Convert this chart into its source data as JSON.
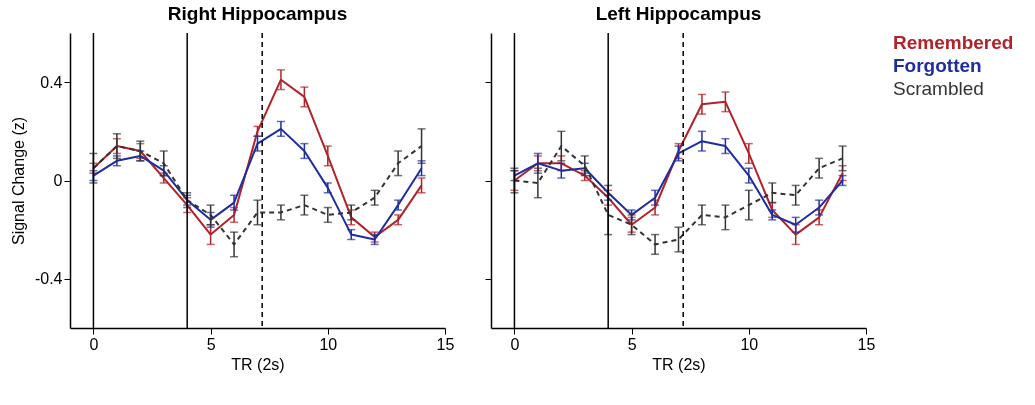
{
  "chart_data": [
    {
      "type": "line",
      "title": "Right Hippocampus",
      "xlabel": "TR (2s)",
      "ylabel": "Signal Change (z)",
      "x": [
        0,
        1,
        2,
        3,
        4,
        5,
        6,
        7,
        8,
        9,
        10,
        11,
        12,
        13,
        14
      ],
      "xlim": [
        -1,
        15
      ],
      "ylim": [
        -0.6,
        0.6
      ],
      "xticks": [
        0,
        5,
        10,
        15
      ],
      "yticks": [
        -0.4,
        0,
        0.4
      ],
      "grid": false,
      "ref_lines": [
        {
          "axis": "x",
          "value": 0,
          "line_style": "solid"
        },
        {
          "axis": "x",
          "value": 4,
          "line_style": "solid"
        },
        {
          "axis": "x",
          "value": 7.2,
          "line_style": "dashed"
        }
      ],
      "series": [
        {
          "color": "#b0232a",
          "line_style": "solid",
          "values": [
            0.05,
            0.14,
            0.12,
            0.01,
            -0.1,
            -0.22,
            -0.14,
            0.2,
            0.41,
            0.34,
            0.1,
            -0.15,
            -0.23,
            -0.16,
            -0.02
          ],
          "errors": [
            0.02,
            0.03,
            0.03,
            0.02,
            0.03,
            0.04,
            0.03,
            0.02,
            0.04,
            0.04,
            0.04,
            0.03,
            0.02,
            0.02,
            0.03
          ]
        },
        {
          "color": "#1f2d9e",
          "line_style": "solid",
          "values": [
            0.02,
            0.08,
            0.1,
            0.04,
            -0.08,
            -0.16,
            -0.09,
            0.15,
            0.21,
            0.12,
            -0.03,
            -0.22,
            -0.24,
            -0.1,
            0.05
          ],
          "errors": [
            0.02,
            0.02,
            0.02,
            0.02,
            0.02,
            0.03,
            0.03,
            0.03,
            0.03,
            0.03,
            0.02,
            0.02,
            0.02,
            0.02,
            0.03
          ]
        },
        {
          "color": "#333333",
          "line_style": "dashed",
          "values": [
            0.05,
            0.14,
            0.12,
            0.07,
            -0.08,
            -0.14,
            -0.26,
            -0.13,
            -0.13,
            -0.1,
            -0.14,
            -0.13,
            -0.07,
            0.07,
            0.14
          ],
          "errors": [
            0.06,
            0.05,
            0.04,
            0.05,
            0.03,
            0.04,
            0.05,
            0.05,
            0.03,
            0.04,
            0.03,
            0.03,
            0.03,
            0.05,
            0.07
          ]
        }
      ]
    },
    {
      "type": "line",
      "title": "Left Hippocampus",
      "xlabel": "TR (2s)",
      "x": [
        0,
        1,
        2,
        3,
        4,
        5,
        6,
        7,
        8,
        9,
        10,
        11,
        12,
        13,
        14
      ],
      "xlim": [
        -1,
        15
      ],
      "ylim": [
        -0.6,
        0.6
      ],
      "xticks": [
        0,
        5,
        10,
        15
      ],
      "yticks": [
        -0.4,
        0,
        0.4
      ],
      "tick_labels": "x",
      "grid": false,
      "ref_lines": [
        {
          "axis": "x",
          "value": 0,
          "line_style": "solid"
        },
        {
          "axis": "x",
          "value": 4,
          "line_style": "solid"
        },
        {
          "axis": "x",
          "value": 7.2,
          "line_style": "dashed"
        }
      ],
      "series": [
        {
          "name": "Remembered",
          "color": "#b0232a",
          "line_style": "solid",
          "values": [
            0,
            0.07,
            0.07,
            0.02,
            -0.07,
            -0.18,
            -0.11,
            0.12,
            0.31,
            0.32,
            0.11,
            -0.12,
            -0.22,
            -0.15,
            0.03
          ],
          "errors": [
            0.04,
            0.03,
            0.03,
            0.02,
            0.03,
            0.03,
            0.03,
            0.03,
            0.04,
            0.04,
            0.04,
            0.03,
            0.04,
            0.03,
            0.03
          ]
        },
        {
          "name": "Forgotten",
          "color": "#1f2d9e",
          "line_style": "solid",
          "values": [
            0.02,
            0.07,
            0.04,
            0.05,
            -0.05,
            -0.14,
            -0.07,
            0.11,
            0.16,
            0.14,
            0.02,
            -0.14,
            -0.18,
            -0.11,
            0
          ],
          "errors": [
            0.02,
            0.04,
            0.03,
            0.02,
            0.03,
            0.02,
            0.03,
            0.03,
            0.04,
            0.03,
            0.03,
            0.02,
            0.03,
            0.03,
            0.02
          ]
        },
        {
          "name": "Scrambled",
          "color": "#333333",
          "line_style": "dashed",
          "values": [
            0,
            -0.01,
            0.14,
            0.06,
            -0.14,
            -0.18,
            -0.26,
            -0.24,
            -0.14,
            -0.15,
            -0.1,
            -0.05,
            -0.06,
            0.05,
            0.09
          ],
          "errors": [
            0.05,
            0.06,
            0.06,
            0.04,
            0.08,
            0.04,
            0.04,
            0.05,
            0.04,
            0.05,
            0.06,
            0.04,
            0.04,
            0.04,
            0.05
          ]
        }
      ]
    }
  ]
}
